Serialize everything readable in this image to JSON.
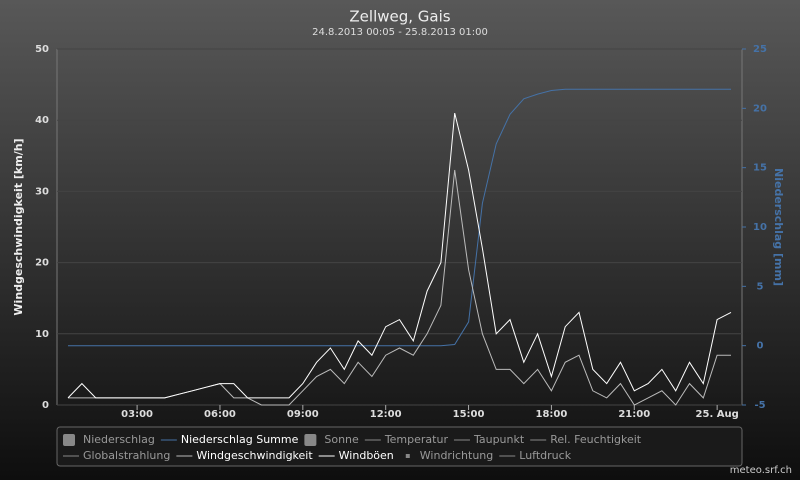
{
  "chart_data": {
    "type": "line",
    "title": "Zellweg, Gais",
    "subtitle": "24.8.2013 00:05 - 25.8.2013 01:00",
    "y_label": "Windgeschwindigkeit [km/h]",
    "y2_label": "Niederschlag [mm]",
    "credit": "meteo.srf.ch",
    "x": [
      0.5,
      1,
      1.5,
      2,
      2.5,
      3,
      3.5,
      4,
      4.5,
      5,
      5.5,
      6,
      6.5,
      7,
      7.5,
      8,
      8.5,
      9,
      9.5,
      10,
      10.5,
      11,
      11.5,
      12,
      12.5,
      13,
      13.5,
      14,
      14.5,
      15,
      15.5,
      16,
      16.5,
      17,
      17.5,
      18,
      18.5,
      19,
      19.5,
      20,
      20.5,
      21,
      21.5,
      22,
      22.5,
      23,
      23.5,
      24,
      24.5
    ],
    "xlim": [
      0.1,
      24.9
    ],
    "xticks": [
      {
        "value": 3,
        "label": "03:00"
      },
      {
        "value": 6,
        "label": "06:00"
      },
      {
        "value": 9,
        "label": "09:00"
      },
      {
        "value": 12,
        "label": "12:00"
      },
      {
        "value": 15,
        "label": "15:00"
      },
      {
        "value": 18,
        "label": "18:00"
      },
      {
        "value": 21,
        "label": "21:00"
      },
      {
        "value": 24,
        "label": "25. Aug"
      }
    ],
    "ylim": [
      0,
      50
    ],
    "yticks": [
      0,
      10,
      20,
      30,
      40,
      50
    ],
    "y2lim": [
      -5,
      25
    ],
    "y2ticks": [
      -5,
      0,
      5,
      10,
      15,
      20,
      25
    ],
    "grid": true,
    "series": [
      {
        "name": "Niederschlag",
        "symbol": "box",
        "color": "#888888",
        "visible": false
      },
      {
        "name": "Niederschlag Summe",
        "symbol": "line",
        "color": "#4572a7",
        "visible": true,
        "axis": "y2",
        "values": [
          0,
          0,
          0,
          0,
          0,
          0,
          0,
          0,
          0,
          0,
          0,
          0,
          0,
          0,
          0,
          0,
          0,
          0,
          0,
          0,
          0,
          0,
          0,
          0,
          0,
          0,
          0,
          0,
          0.1,
          2,
          12,
          17,
          19.5,
          20.8,
          21.2,
          21.5,
          21.6,
          21.6,
          21.6,
          21.6,
          21.6,
          21.6,
          21.6,
          21.6,
          21.6,
          21.6,
          21.6,
          21.6,
          21.6
        ]
      },
      {
        "name": "Sonne",
        "symbol": "box",
        "color": "#888888",
        "visible": false
      },
      {
        "name": "Temperatur",
        "symbol": "line",
        "color": "#888888",
        "visible": false
      },
      {
        "name": "Taupunkt",
        "symbol": "line",
        "color": "#888888",
        "visible": false
      },
      {
        "name": "Rel. Feuchtigkeit",
        "symbol": "line",
        "color": "#888888",
        "visible": false
      },
      {
        "name": "Globalstrahlung",
        "symbol": "line",
        "color": "#888888",
        "visible": false
      },
      {
        "name": "Windgeschwindigkeit",
        "symbol": "line",
        "color": "#bbbbbb",
        "visible": true,
        "values": [
          1,
          1,
          1,
          1,
          1,
          1,
          1,
          1,
          1.5,
          2,
          2.5,
          3,
          1,
          1,
          0,
          0,
          0,
          2,
          4,
          5,
          3,
          6,
          4,
          7,
          8,
          7,
          10,
          14,
          33,
          19,
          10,
          5,
          5,
          3,
          5,
          2,
          6,
          7,
          2,
          1,
          3,
          0,
          1,
          2,
          0,
          3,
          1,
          7,
          7
        ]
      },
      {
        "name": "Windböen",
        "symbol": "line",
        "color": "#ffffff",
        "visible": true,
        "values": [
          1,
          3,
          1,
          1,
          1,
          1,
          1,
          1,
          1.5,
          2,
          2.5,
          3,
          3,
          1,
          1,
          1,
          1,
          3,
          6,
          8,
          5,
          9,
          7,
          11,
          12,
          9,
          16,
          20,
          41,
          33,
          22,
          10,
          12,
          6,
          10,
          4,
          11,
          13,
          5,
          3,
          6,
          2,
          3,
          5,
          2,
          6,
          3,
          12,
          13
        ]
      },
      {
        "name": "Windrichtung",
        "symbol": "dot",
        "color": "#888888",
        "visible": false
      },
      {
        "name": "Luftdruck",
        "symbol": "line",
        "color": "#888888",
        "visible": false
      }
    ]
  }
}
